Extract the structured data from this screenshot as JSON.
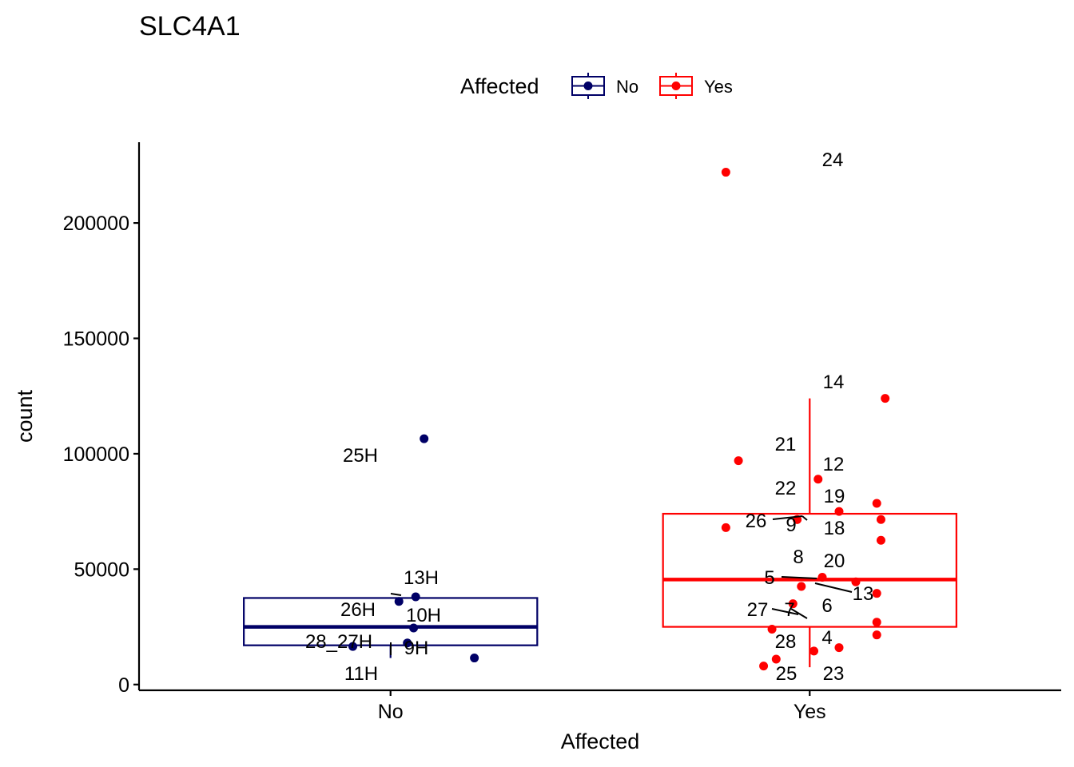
{
  "chart_data": {
    "type": "box",
    "title": "SLC4A1",
    "xlabel": "Affected",
    "ylabel": "count",
    "categories": [
      "No",
      "Yes"
    ],
    "ylim": [
      -2500,
      235000
    ],
    "yticks": [
      0,
      50000,
      100000,
      150000,
      200000
    ],
    "grid": false,
    "legend": {
      "title": "Affected",
      "position": "top",
      "entries": [
        {
          "label": "No",
          "color": "#000066"
        },
        {
          "label": "Yes",
          "color": "#ff0000"
        }
      ]
    },
    "series": [
      {
        "category": "No",
        "color": "#000066",
        "box": {
          "min": 11500,
          "q1": 17000,
          "median": 25000,
          "q3": 37500,
          "max": 37500
        },
        "points": [
          {
            "x": 1.08,
            "y": 106500,
            "label": "25H"
          },
          {
            "x": 1.06,
            "y": 38000,
            "label": "13H"
          },
          {
            "x": 1.02,
            "y": 36000,
            "label": "26H"
          },
          {
            "x": 1.055,
            "y": 24500,
            "label": "10H"
          },
          {
            "x": 0.91,
            "y": 16500,
            "label": "28_27H"
          },
          {
            "x": 1.04,
            "y": 18000,
            "label": "9H"
          },
          {
            "x": 1.2,
            "y": 11500,
            "label": "11H"
          }
        ]
      },
      {
        "category": "Yes",
        "color": "#ff0000",
        "box": {
          "min": 7500,
          "q1": 25000,
          "median": 45500,
          "q3": 74000,
          "max": 124000
        },
        "points": [
          {
            "x": 1.8,
            "y": 222000,
            "label": "24"
          },
          {
            "x": 2.18,
            "y": 124000,
            "label": "14"
          },
          {
            "x": 1.83,
            "y": 97000,
            "label": "21"
          },
          {
            "x": 2.02,
            "y": 89000,
            "label": "12"
          },
          {
            "x": 1.97,
            "y": 71500,
            "label": "22"
          },
          {
            "x": 2.07,
            "y": 75000,
            "label": "19"
          },
          {
            "x": 1.8,
            "y": 68000,
            "label": "26"
          },
          {
            "x": 1.97,
            "y": 71500,
            "label": "9"
          },
          {
            "x": 2.17,
            "y": 71500,
            "label": "18"
          },
          {
            "x": 2.16,
            "y": 78500,
            "label": "18"
          },
          {
            "x": 2.17,
            "y": 62500,
            "label": "18"
          },
          {
            "x": 2.03,
            "y": 46500,
            "label": "20"
          },
          {
            "x": 1.98,
            "y": 42500,
            "label": "8"
          },
          {
            "x": 2.11,
            "y": 44500,
            "label": "5"
          },
          {
            "x": 2.16,
            "y": 39500,
            "label": "13"
          },
          {
            "x": 1.96,
            "y": 35000,
            "label": "6"
          },
          {
            "x": 2.16,
            "y": 27000,
            "label": "7"
          },
          {
            "x": 1.91,
            "y": 24000,
            "label": "27"
          },
          {
            "x": 2.16,
            "y": 21500,
            "label": "4"
          },
          {
            "x": 2.07,
            "y": 16000,
            "label": "28"
          },
          {
            "x": 2.01,
            "y": 14500,
            "label": "28"
          },
          {
            "x": 1.92,
            "y": 11000,
            "label": "25"
          },
          {
            "x": 1.89,
            "y": 8000,
            "label": "23"
          }
        ]
      }
    ],
    "labels": [
      {
        "text": "24"
      },
      {
        "text": "14"
      },
      {
        "text": "21"
      },
      {
        "text": "12"
      },
      {
        "text": "22"
      },
      {
        "text": "19"
      },
      {
        "text": "26"
      },
      {
        "text": "9"
      },
      {
        "text": "18"
      },
      {
        "text": "8"
      },
      {
        "text": "20"
      },
      {
        "text": "5"
      },
      {
        "text": "13"
      },
      {
        "text": "6"
      },
      {
        "text": "27"
      },
      {
        "text": "7"
      },
      {
        "text": "4"
      },
      {
        "text": "28"
      },
      {
        "text": "25"
      },
      {
        "text": "23"
      },
      {
        "text": "25H"
      },
      {
        "text": "13H"
      },
      {
        "text": "26H"
      },
      {
        "text": "10H"
      },
      {
        "text": "28_27H"
      },
      {
        "text": "9H"
      },
      {
        "text": "11H"
      }
    ]
  }
}
